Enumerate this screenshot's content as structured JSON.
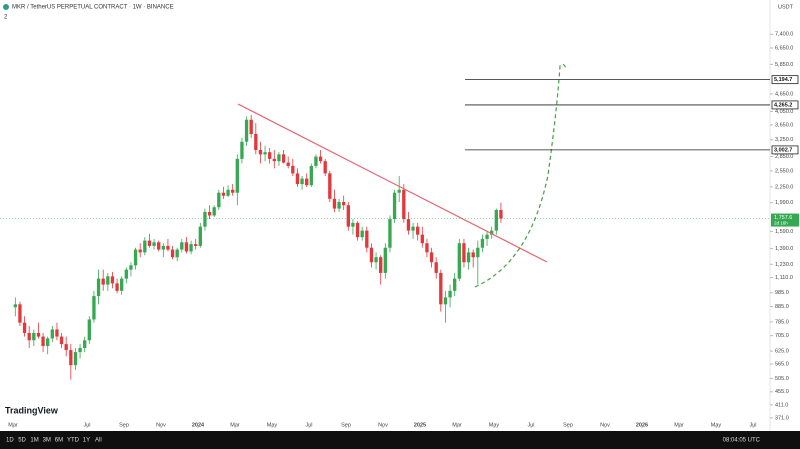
{
  "header": {
    "symbol": "MKR / TetherUS PERPETUAL CONTRACT · 1W · BINANCE",
    "indicators": "2",
    "currency": "USDT"
  },
  "toolbar": {
    "ranges": [
      "1D",
      "5D",
      "1M",
      "3M",
      "6M",
      "YTD",
      "1Y",
      "All"
    ],
    "clock": "08:04:05 UTC"
  },
  "logo": "TradingView",
  "chart_data": {
    "type": "candlestick",
    "log_scale": true,
    "grid": false,
    "up_color": "#36a852",
    "down_color": "#e2383c",
    "ylim": [
      343,
      9300
    ],
    "yticks": [
      {
        "value": 7400,
        "label": "7,400.0"
      },
      {
        "value": 6650,
        "label": "6,650.0"
      },
      {
        "value": 5850,
        "label": "5,850.0"
      },
      {
        "value": 4650,
        "label": "4,650.0"
      },
      {
        "value": 4050,
        "label": "4,050.0"
      },
      {
        "value": 3650,
        "label": "3,650.0"
      },
      {
        "value": 3250,
        "label": "3,250.0"
      },
      {
        "value": 2850,
        "label": "2,850.0"
      },
      {
        "value": 2550,
        "label": "2,550.0"
      },
      {
        "value": 2250,
        "label": "2,250.0"
      },
      {
        "value": 1990,
        "label": "1,990.0"
      },
      {
        "value": 1590,
        "label": "1,590.0"
      },
      {
        "value": 1390,
        "label": "1,390.0"
      },
      {
        "value": 1230,
        "label": "1,230.0"
      },
      {
        "value": 1110,
        "label": "1,110.0"
      },
      {
        "value": 985,
        "label": "985.0"
      },
      {
        "value": 885,
        "label": "885.0"
      },
      {
        "value": 785,
        "label": "785.0"
      },
      {
        "value": 705,
        "label": "705.0"
      },
      {
        "value": 625,
        "label": "625.0"
      },
      {
        "value": 565,
        "label": "565.0"
      },
      {
        "value": 505,
        "label": "505.0"
      },
      {
        "value": 455,
        "label": "455.0"
      },
      {
        "value": 411,
        "label": "411.0"
      },
      {
        "value": 371,
        "label": "371.0"
      }
    ],
    "xlim": [
      "2023-02",
      "2026-08"
    ],
    "xticks": [
      {
        "value": "2023-03",
        "label": "Mar"
      },
      {
        "value": "2023-07",
        "label": "Jul"
      },
      {
        "value": "2023-09",
        "label": "Sep"
      },
      {
        "value": "2023-11",
        "label": "Nov"
      },
      {
        "value": "2024-01",
        "label": "2024"
      },
      {
        "value": "2024-03",
        "label": "Mar"
      },
      {
        "value": "2024-05",
        "label": "May"
      },
      {
        "value": "2024-07",
        "label": "Jul"
      },
      {
        "value": "2024-09",
        "label": "Sep"
      },
      {
        "value": "2024-11",
        "label": "Nov"
      },
      {
        "value": "2025-01",
        "label": "2025"
      },
      {
        "value": "2025-03",
        "label": "Mar"
      },
      {
        "value": "2025-05",
        "label": "May"
      },
      {
        "value": "2025-07",
        "label": "Jul"
      },
      {
        "value": "2025-09",
        "label": "Sep"
      },
      {
        "value": "2025-11",
        "label": "Nov"
      },
      {
        "value": "2026-01",
        "label": "2026"
      },
      {
        "value": "2026-03",
        "label": "Mar"
      },
      {
        "value": "2026-05",
        "label": "May"
      },
      {
        "value": "2026-07",
        "label": "Jul"
      }
    ],
    "levels": [
      {
        "value": 5194.7,
        "label": "5,194.7"
      },
      {
        "value": 4265.2,
        "label": "4,265.2"
      },
      {
        "value": 3002.7,
        "label": "3,002.7"
      }
    ],
    "last": {
      "value": 1757.6,
      "label": "1,757.6",
      "countdown": "2d 16h"
    },
    "months": [
      {
        "month": "2023-03",
        "candles": [
          [
            880,
            950,
            820,
            900
          ],
          [
            900,
            920,
            760,
            780
          ],
          [
            780,
            820,
            700,
            720
          ],
          [
            720,
            760,
            640,
            680
          ]
        ]
      },
      {
        "month": "2023-04",
        "candles": [
          [
            680,
            740,
            650,
            720
          ],
          [
            720,
            780,
            690,
            700
          ],
          [
            700,
            720,
            620,
            650
          ],
          [
            650,
            700,
            610,
            690
          ]
        ]
      },
      {
        "month": "2023-05",
        "candles": [
          [
            690,
            760,
            670,
            740
          ],
          [
            740,
            780,
            680,
            700
          ],
          [
            700,
            720,
            640,
            660
          ],
          [
            660,
            700,
            600,
            630
          ]
        ]
      },
      {
        "month": "2023-06",
        "candles": [
          [
            630,
            660,
            500,
            560
          ],
          [
            560,
            640,
            540,
            620
          ],
          [
            620,
            660,
            590,
            640
          ],
          [
            640,
            700,
            620,
            680
          ]
        ]
      },
      {
        "month": "2023-07",
        "candles": [
          [
            680,
            820,
            660,
            800
          ],
          [
            800,
            1000,
            780,
            960
          ],
          [
            960,
            1180,
            900,
            1100
          ],
          [
            1100,
            1180,
            1000,
            1050
          ]
        ]
      },
      {
        "month": "2023-08",
        "candles": [
          [
            1050,
            1150,
            1000,
            1120
          ],
          [
            1120,
            1160,
            1020,
            1060
          ],
          [
            1060,
            1100,
            980,
            1000
          ],
          [
            1000,
            1120,
            970,
            1100
          ]
        ]
      },
      {
        "month": "2023-09",
        "candles": [
          [
            1100,
            1200,
            1060,
            1180
          ],
          [
            1180,
            1250,
            1120,
            1220
          ],
          [
            1220,
            1400,
            1180,
            1380
          ],
          [
            1380,
            1450,
            1300,
            1350
          ]
        ]
      },
      {
        "month": "2023-10",
        "candles": [
          [
            1350,
            1520,
            1320,
            1480
          ],
          [
            1480,
            1560,
            1400,
            1420
          ],
          [
            1420,
            1500,
            1380,
            1460
          ],
          [
            1460,
            1480,
            1360,
            1380
          ]
        ]
      },
      {
        "month": "2023-11",
        "candles": [
          [
            1380,
            1450,
            1300,
            1420
          ],
          [
            1420,
            1500,
            1360,
            1380
          ],
          [
            1380,
            1420,
            1280,
            1300
          ],
          [
            1300,
            1400,
            1260,
            1380
          ]
        ]
      },
      {
        "month": "2023-12",
        "candles": [
          [
            1380,
            1500,
            1350,
            1460
          ],
          [
            1460,
            1520,
            1340,
            1360
          ],
          [
            1360,
            1480,
            1330,
            1440
          ],
          [
            1440,
            1500,
            1380,
            1420
          ]
        ]
      },
      {
        "month": "2024-01",
        "candles": [
          [
            1420,
            1700,
            1400,
            1650
          ],
          [
            1650,
            1900,
            1600,
            1850
          ],
          [
            1850,
            1950,
            1750,
            1800
          ],
          [
            1800,
            1950,
            1780,
            1920
          ]
        ]
      },
      {
        "month": "2024-02",
        "candles": [
          [
            1920,
            2200,
            1880,
            2150
          ],
          [
            2150,
            2250,
            2050,
            2100
          ],
          [
            2100,
            2280,
            2080,
            2200
          ],
          [
            2200,
            2300,
            2100,
            2150
          ]
        ]
      },
      {
        "month": "2024-03",
        "candles": [
          [
            2150,
            2900,
            1950,
            2800
          ],
          [
            2800,
            3300,
            2700,
            3200
          ],
          [
            3200,
            3900,
            3100,
            3800
          ],
          [
            3800,
            3950,
            3300,
            3400
          ]
        ]
      },
      {
        "month": "2024-04",
        "candles": [
          [
            3400,
            3700,
            2900,
            3000
          ],
          [
            3000,
            3200,
            2700,
            2900
          ],
          [
            2900,
            3100,
            2750,
            2950
          ],
          [
            2950,
            3050,
            2700,
            2800
          ]
        ]
      },
      {
        "month": "2024-05",
        "candles": [
          [
            2800,
            3000,
            2600,
            2750
          ],
          [
            2750,
            2950,
            2650,
            2900
          ],
          [
            2900,
            3000,
            2700,
            2720
          ],
          [
            2720,
            2850,
            2600,
            2650
          ]
        ]
      },
      {
        "month": "2024-06",
        "candles": [
          [
            2650,
            2800,
            2450,
            2500
          ],
          [
            2500,
            2600,
            2250,
            2300
          ],
          [
            2300,
            2450,
            2200,
            2400
          ],
          [
            2400,
            2500,
            2250,
            2280
          ]
        ]
      },
      {
        "month": "2024-07",
        "candles": [
          [
            2280,
            2700,
            2250,
            2650
          ],
          [
            2650,
            2900,
            2600,
            2850
          ],
          [
            2850,
            3000,
            2700,
            2750
          ],
          [
            2750,
            2800,
            2450,
            2500
          ]
        ]
      },
      {
        "month": "2024-08",
        "candles": [
          [
            2500,
            2550,
            2000,
            2050
          ],
          [
            2050,
            2200,
            1850,
            1900
          ],
          [
            1900,
            2050,
            1850,
            2000
          ],
          [
            2000,
            2100,
            1880,
            1950
          ]
        ]
      },
      {
        "month": "2024-09",
        "candles": [
          [
            1950,
            2000,
            1600,
            1650
          ],
          [
            1650,
            1750,
            1550,
            1700
          ],
          [
            1700,
            1720,
            1480,
            1520
          ],
          [
            1520,
            1650,
            1480,
            1600
          ]
        ]
      },
      {
        "month": "2024-10",
        "candles": [
          [
            1600,
            1650,
            1350,
            1400
          ],
          [
            1400,
            1450,
            1200,
            1250
          ],
          [
            1250,
            1350,
            1180,
            1300
          ],
          [
            1300,
            1320,
            1050,
            1150
          ]
        ]
      },
      {
        "month": "2024-11",
        "candles": [
          [
            1150,
            1450,
            1100,
            1400
          ],
          [
            1400,
            1800,
            1350,
            1750
          ],
          [
            1750,
            2200,
            1700,
            2150
          ],
          [
            2150,
            2450,
            2000,
            2200
          ]
        ]
      },
      {
        "month": "2024-12",
        "candles": [
          [
            2200,
            2300,
            1700,
            1750
          ],
          [
            1750,
            1850,
            1550,
            1600
          ],
          [
            1600,
            1700,
            1500,
            1650
          ],
          [
            1650,
            1700,
            1480,
            1550
          ]
        ]
      },
      {
        "month": "2025-01",
        "candles": [
          [
            1550,
            1650,
            1400,
            1450
          ],
          [
            1450,
            1500,
            1300,
            1350
          ],
          [
            1350,
            1400,
            1200,
            1250
          ],
          [
            1250,
            1300,
            1100,
            1150
          ]
        ]
      },
      {
        "month": "2025-02",
        "candles": [
          [
            1150,
            1180,
            850,
            900
          ],
          [
            900,
            1000,
            780,
            950
          ],
          [
            950,
            1050,
            880,
            1000
          ],
          [
            1000,
            1150,
            960,
            1100
          ]
        ]
      },
      {
        "month": "2025-03",
        "candles": [
          [
            1100,
            1500,
            1080,
            1450
          ],
          [
            1450,
            1500,
            1200,
            1250
          ],
          [
            1250,
            1400,
            1180,
            1350
          ],
          [
            1350,
            1380,
            1200,
            1300
          ]
        ]
      },
      {
        "month": "2025-04",
        "candles": [
          [
            1300,
            1480,
            1050,
            1400
          ],
          [
            1400,
            1550,
            1350,
            1500
          ],
          [
            1500,
            1600,
            1420,
            1550
          ],
          [
            1550,
            1650,
            1500,
            1600
          ]
        ]
      },
      {
        "month": "2025-05",
        "candles": [
          [
            1600,
            1900,
            1550,
            1880
          ],
          [
            1880,
            1990,
            1700,
            1757.6
          ]
        ]
      }
    ]
  }
}
